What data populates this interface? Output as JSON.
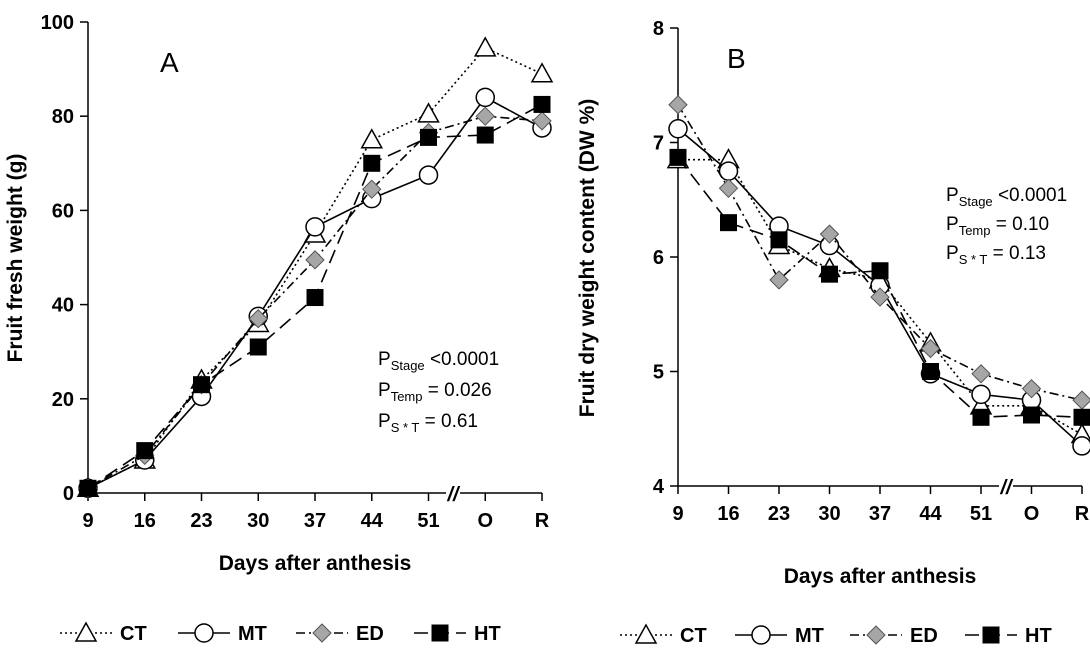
{
  "chart_data": [
    {
      "type": "line",
      "panel_label": "A",
      "xlabel": "Days after anthesis",
      "ylabel": "Fruit fresh weight (g)",
      "categories": [
        "9",
        "16",
        "23",
        "30",
        "37",
        "44",
        "51",
        "O",
        "R"
      ],
      "axis_break": "//",
      "ylim": [
        0,
        100
      ],
      "yticks": [
        "0",
        "20",
        "40",
        "60",
        "80",
        "100"
      ],
      "grid": false,
      "legend_position": "bottom",
      "series": [
        {
          "name": "CT",
          "style": "dotted",
          "marker": "triangle-open",
          "values": [
            1,
            7,
            24,
            36,
            55,
            75,
            80.5,
            94.5,
            89
          ]
        },
        {
          "name": "MT",
          "style": "solid",
          "marker": "circle-open",
          "values": [
            1,
            7,
            20.5,
            37.5,
            56.5,
            62.5,
            67.5,
            84,
            77.5
          ]
        },
        {
          "name": "ED",
          "style": "dash-dot",
          "marker": "diamond-gray",
          "values": [
            1,
            8,
            23,
            37,
            49.5,
            64.5,
            76.5,
            80,
            79
          ]
        },
        {
          "name": "HT",
          "style": "dashed",
          "marker": "square-filled",
          "values": [
            1,
            9,
            23,
            31,
            41.5,
            70,
            75.5,
            76,
            82.5
          ]
        }
      ],
      "stats": [
        {
          "p": "P",
          "sub": "Stage",
          "rest": " <0.0001"
        },
        {
          "p": "P",
          "sub": "Temp",
          "rest": " = 0.026"
        },
        {
          "p": "P",
          "sub": "S * T",
          "rest": " = 0.61"
        }
      ]
    },
    {
      "type": "line",
      "panel_label": "B",
      "xlabel": "Days after anthesis",
      "ylabel": "Fruit dry weight content (DW %)",
      "categories": [
        "9",
        "16",
        "23",
        "30",
        "37",
        "44",
        "51",
        "O",
        "R"
      ],
      "axis_break": "//",
      "ylim": [
        4,
        8
      ],
      "yticks": [
        "4",
        "5",
        "6",
        "7",
        "8"
      ],
      "grid": false,
      "legend_position": "bottom",
      "series": [
        {
          "name": "CT",
          "style": "dotted",
          "marker": "triangle-open",
          "values": [
            6.85,
            6.85,
            6.1,
            5.9,
            5.8,
            5.25,
            4.7,
            4.7,
            4.45
          ]
        },
        {
          "name": "MT",
          "style": "solid",
          "marker": "circle-open",
          "values": [
            7.12,
            6.75,
            6.27,
            6.1,
            5.75,
            4.98,
            4.8,
            4.75,
            4.35
          ]
        },
        {
          "name": "ED",
          "style": "dash-dot",
          "marker": "diamond-gray",
          "values": [
            7.33,
            6.6,
            5.8,
            6.2,
            5.65,
            5.2,
            4.98,
            4.85,
            4.75
          ]
        },
        {
          "name": "HT",
          "style": "dashed",
          "marker": "square-filled",
          "values": [
            6.87,
            6.3,
            6.15,
            5.85,
            5.88,
            5.0,
            4.6,
            4.62,
            4.6
          ]
        }
      ],
      "stats": [
        {
          "p": "P",
          "sub": "Stage",
          "rest": " <0.0001"
        },
        {
          "p": "P",
          "sub": "Temp",
          "rest": " = 0.10"
        },
        {
          "p": "P",
          "sub": "S * T",
          "rest": " = 0.13"
        }
      ]
    }
  ]
}
